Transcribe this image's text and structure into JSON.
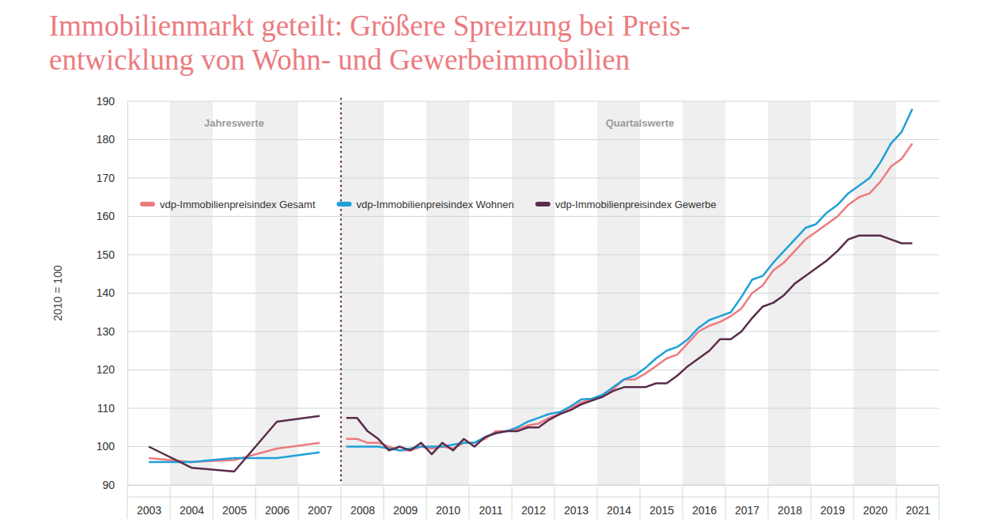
{
  "chart_data": {
    "type": "line",
    "title": [
      "Immobilienmarkt geteilt: Größere Spreizung bei Preis-",
      "entwicklung von Wohn- und Gewerbeimmobilien"
    ],
    "y_label": "2010 = 100",
    "annotations": [
      "Jahreswerte",
      "Quartalswerte"
    ],
    "grid": true,
    "legend": "upper left",
    "xlim": [
      2003,
      2022
    ],
    "xticks": [
      {
        "value": 2003.5,
        "label": "2003"
      },
      {
        "value": 2004.5,
        "label": "2004"
      },
      {
        "value": 2005.5,
        "label": "2005"
      },
      {
        "value": 2006.5,
        "label": "2006"
      },
      {
        "value": 2007.5,
        "label": "2007"
      },
      {
        "value": 2008.5,
        "label": "2008"
      },
      {
        "value": 2009.5,
        "label": "2009"
      },
      {
        "value": 2010.5,
        "label": "2010"
      },
      {
        "value": 2011.5,
        "label": "2011"
      },
      {
        "value": 2012.5,
        "label": "2012"
      },
      {
        "value": 2013.5,
        "label": "2013"
      },
      {
        "value": 2014.5,
        "label": "2014"
      },
      {
        "value": 2015.5,
        "label": "2015"
      },
      {
        "value": 2016.5,
        "label": "2016"
      },
      {
        "value": 2017.5,
        "label": "2017"
      },
      {
        "value": 2018.5,
        "label": "2018"
      },
      {
        "value": 2019.5,
        "label": "2019"
      },
      {
        "value": 2020.5,
        "label": "2020"
      },
      {
        "value": 2021.5,
        "label": "2021"
      }
    ],
    "ylim": [
      90,
      190
    ],
    "yticks": [
      90,
      100,
      110,
      120,
      130,
      140,
      150,
      160,
      170,
      180,
      190
    ],
    "x": [
      2003.5,
      2004.5,
      2005.5,
      2006.5,
      2007.5,
      2008,
      2008.125,
      2008.375,
      2008.625,
      2008.875,
      2009.125,
      2009.375,
      2009.625,
      2009.875,
      2010.125,
      2010.375,
      2010.625,
      2010.875,
      2011.125,
      2011.375,
      2011.625,
      2011.875,
      2012.125,
      2012.375,
      2012.625,
      2012.875,
      2013.125,
      2013.375,
      2013.625,
      2013.875,
      2014.125,
      2014.375,
      2014.625,
      2014.875,
      2015.125,
      2015.375,
      2015.625,
      2015.875,
      2016.125,
      2016.375,
      2016.625,
      2016.875,
      2017.125,
      2017.375,
      2017.625,
      2017.875,
      2018.125,
      2018.375,
      2018.625,
      2018.875,
      2019.125,
      2019.375,
      2019.625,
      2019.875,
      2020.125,
      2020.375,
      2020.625,
      2020.875,
      2021.125,
      2021.375
    ],
    "series": [
      {
        "name": "vdp-Immobilienpreisindex Gesamt",
        "color": "#ec7b7f",
        "values": [
          97,
          96,
          96.5,
          99.5,
          101,
          null,
          102,
          102,
          101,
          101,
          100,
          99,
          99,
          100,
          99.5,
          100,
          99.5,
          101,
          101,
          102,
          104,
          104,
          104.5,
          105.5,
          106,
          107.5,
          108.5,
          110,
          111.5,
          112.5,
          113,
          115,
          117.5,
          117.5,
          119,
          121,
          123,
          124,
          127,
          130,
          131.5,
          132.5,
          134,
          136,
          140,
          142,
          146,
          148,
          151,
          154,
          156,
          158,
          160,
          163,
          165,
          166,
          169,
          173,
          175,
          179
        ]
      },
      {
        "name": "vdp-Immobilienpreisindex Wohnen",
        "color": "#1fa0d9",
        "values": [
          96,
          96,
          97,
          97,
          98.5,
          null,
          100,
          100,
          100,
          100,
          99.5,
          99,
          99.5,
          100,
          100,
          100,
          100.5,
          101,
          101,
          102.5,
          103.5,
          104,
          105,
          106.5,
          107.5,
          108.5,
          109,
          110.5,
          112.3,
          112.5,
          113.5,
          115.5,
          117.5,
          118.5,
          120.5,
          123,
          125,
          126,
          128,
          131,
          133,
          134,
          135,
          139,
          143.5,
          144.5,
          148,
          151,
          154,
          157,
          158,
          161,
          163,
          166,
          168,
          170,
          174,
          179,
          182,
          188
        ]
      },
      {
        "name": "vdp-Immobilienpreisindex Gewerbe",
        "color": "#5b2c4b",
        "values": [
          100,
          94.5,
          93.5,
          106.5,
          108,
          null,
          107.5,
          107.5,
          104,
          102,
          99,
          100,
          99,
          101,
          98,
          101,
          99,
          102,
          100,
          102.5,
          103.5,
          104,
          104,
          105,
          105,
          107,
          108.5,
          109.5,
          111,
          112,
          113,
          114.5,
          115.5,
          115.5,
          115.5,
          116.5,
          116.5,
          118.5,
          121,
          123,
          125,
          128,
          128,
          130,
          133.5,
          136.5,
          137.5,
          139.5,
          142.5,
          144.5,
          146.5,
          148.5,
          151,
          154,
          155,
          155,
          155,
          154,
          153,
          153
        ]
      }
    ]
  }
}
